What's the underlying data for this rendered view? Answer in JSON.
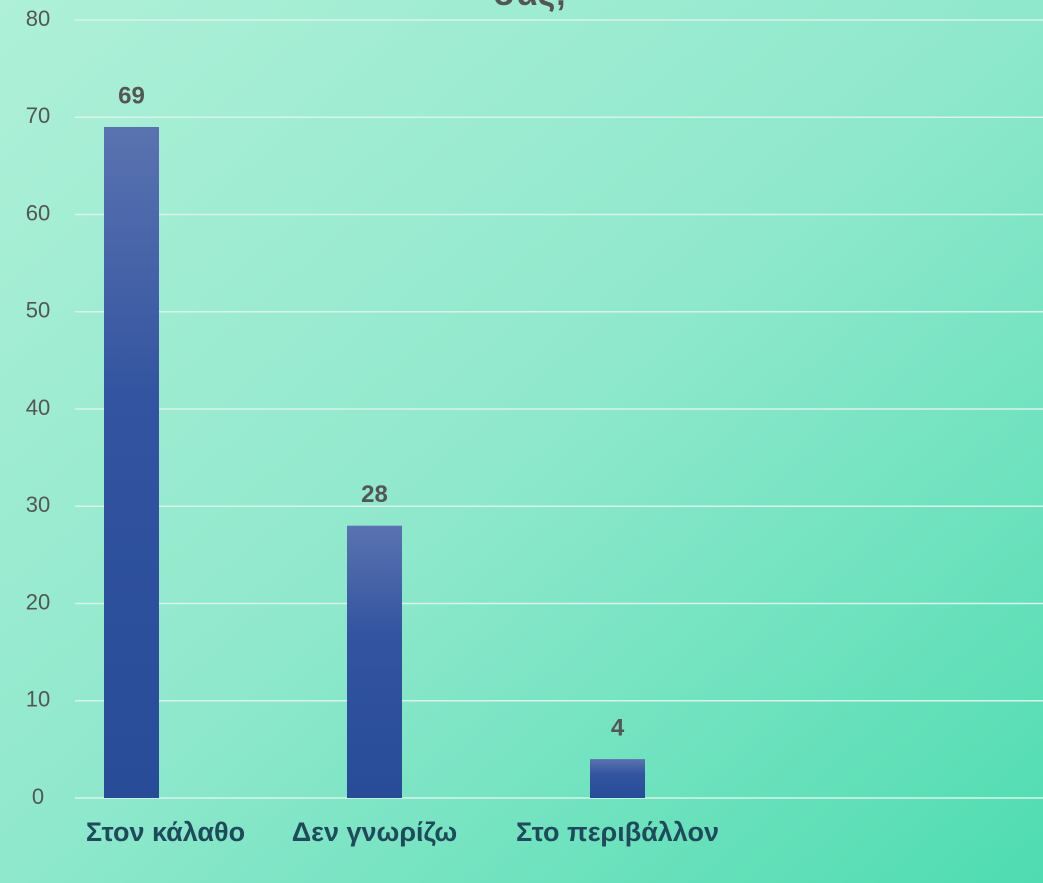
{
  "chart_data": {
    "type": "bar",
    "title": "σας;",
    "categories": [
      "Στον κάλαθο",
      "Δεν γνωρίζω",
      "Στο περιβάλλον"
    ],
    "values": [
      69,
      28,
      4
    ],
    "color": "#2e4f9c",
    "ylim": [
      0,
      80
    ],
    "yticks": [
      0,
      10,
      20,
      30,
      40,
      50,
      60,
      70,
      80
    ],
    "grid": true
  }
}
